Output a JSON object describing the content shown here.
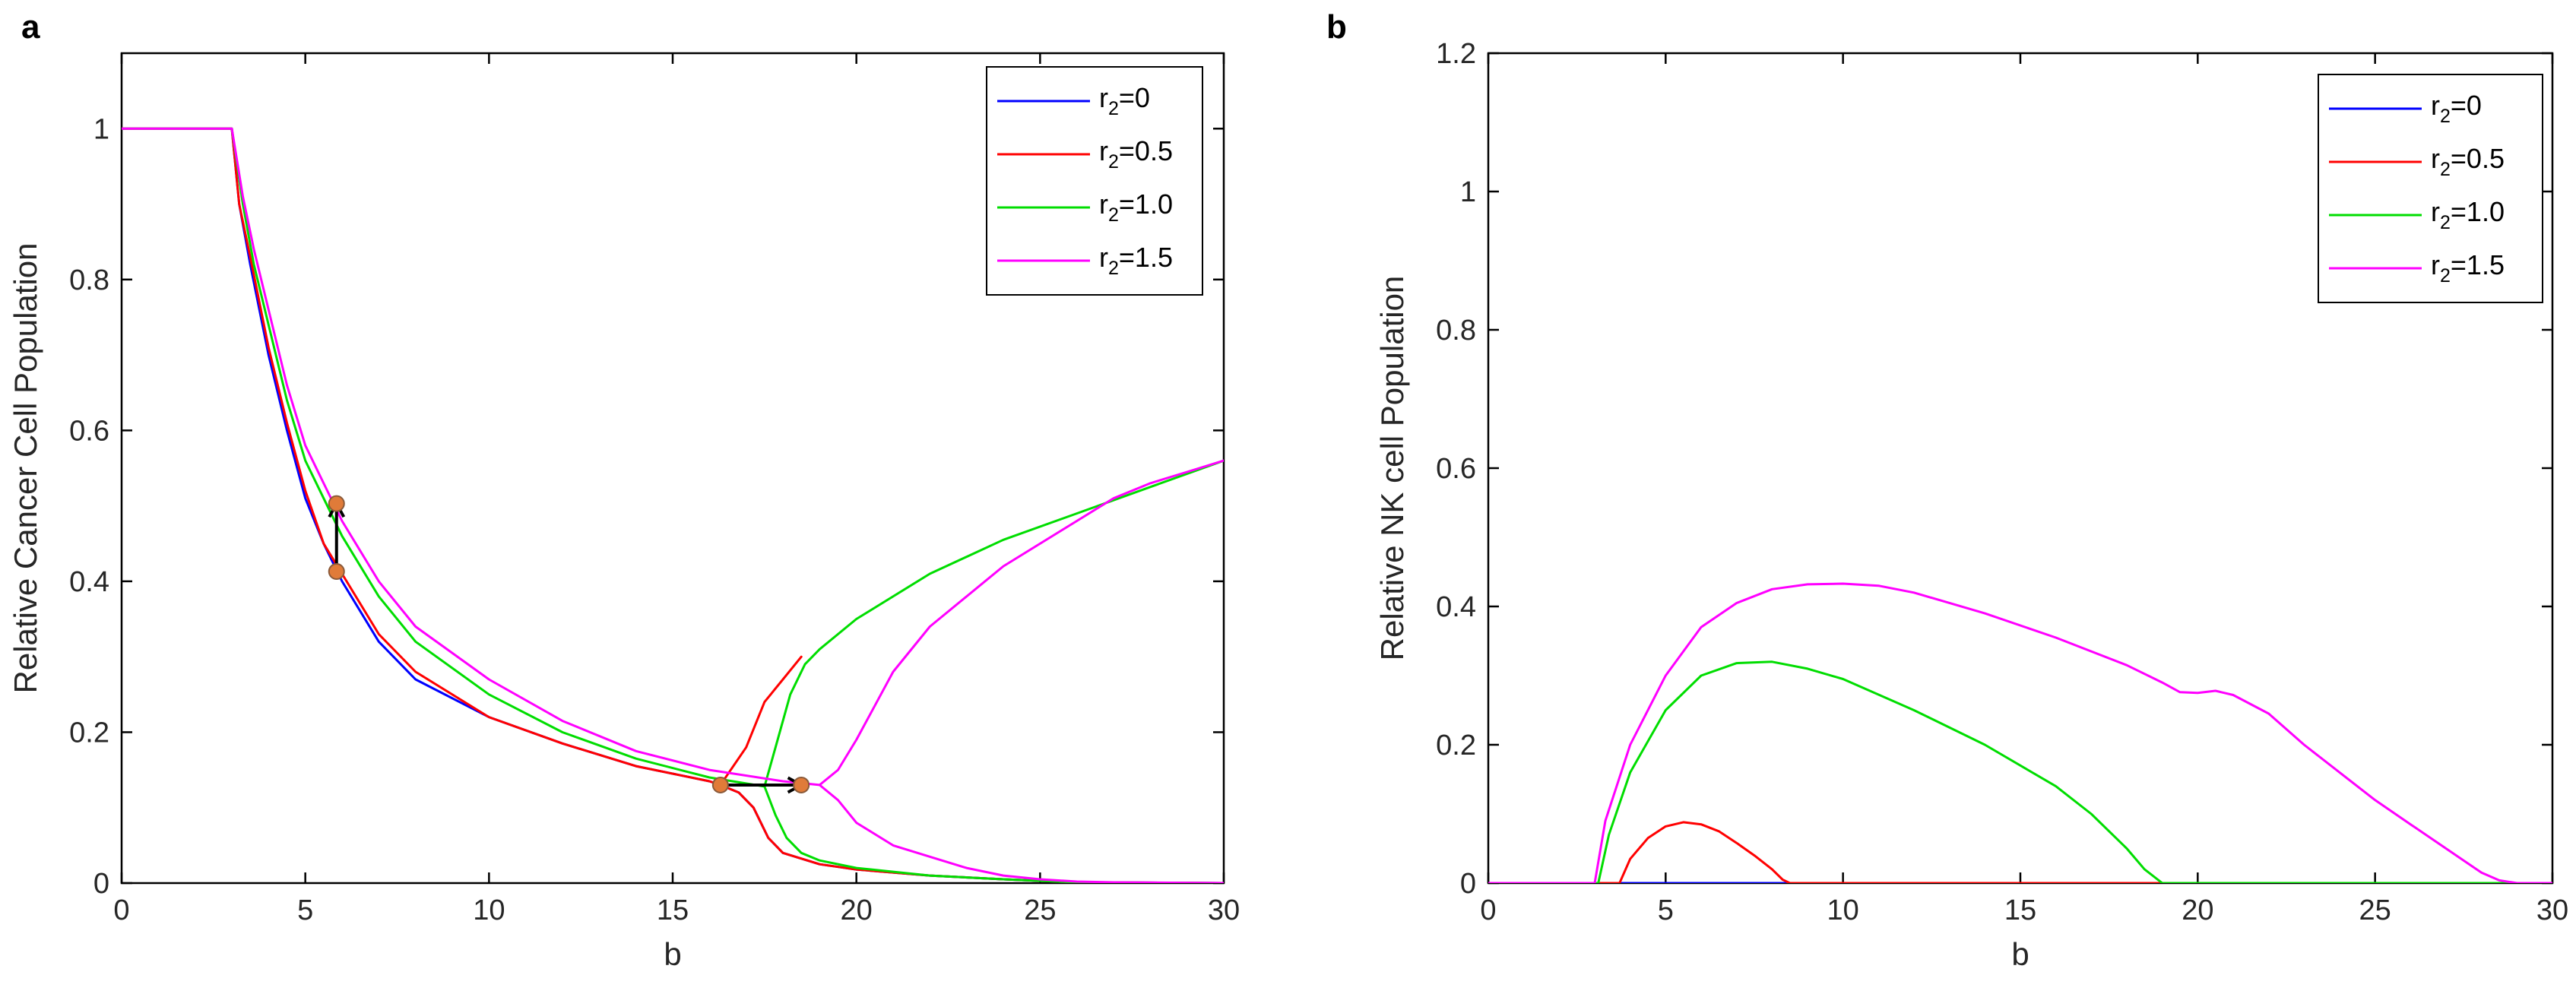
{
  "chart_data": [
    {
      "panel": "a",
      "type": "line",
      "title": "",
      "xlabel": "b",
      "ylabel": "Relative Cancer Cell Population",
      "xlim": [
        0,
        30
      ],
      "ylim": [
        0,
        1.1
      ],
      "xticks": [
        0,
        5,
        10,
        15,
        20,
        25,
        30
      ],
      "yticks": [
        0,
        0.2,
        0.4,
        0.6,
        0.8,
        1
      ],
      "xtick_labels": [
        "0",
        "5",
        "10",
        "15",
        "20",
        "25",
        "30"
      ],
      "ytick_labels": [
        "0",
        "0.2",
        "0.4",
        "0.6",
        "0.8",
        "1"
      ],
      "legend_position": "top-right",
      "series": [
        {
          "name": "r2=0",
          "name_base": "r",
          "name_sub": "2",
          "name_rest": "=0",
          "color": "#0000FF",
          "segments": [
            [
              [
                0,
                1
              ],
              [
                3,
                1
              ],
              [
                3.2,
                0.9
              ],
              [
                3.5,
                0.82
              ],
              [
                4,
                0.7
              ],
              [
                4.5,
                0.6
              ],
              [
                5,
                0.51
              ],
              [
                5.5,
                0.45
              ],
              [
                6,
                0.4
              ],
              [
                7,
                0.32
              ],
              [
                8,
                0.27
              ],
              [
                10,
                0.22
              ],
              [
                12,
                0.185
              ],
              [
                14,
                0.155
              ],
              [
                16,
                0.135
              ],
              [
                16.3,
                0.13
              ]
            ],
            [
              [
                16.3,
                0.13
              ],
              [
                16.8,
                0.12
              ],
              [
                17.2,
                0.1
              ],
              [
                17.6,
                0.06
              ],
              [
                18,
                0.04
              ],
              [
                19,
                0.025
              ],
              [
                20,
                0.018
              ],
              [
                22,
                0.01
              ],
              [
                24,
                0.005
              ],
              [
                25,
                0.003
              ],
              [
                26,
                0.001
              ],
              [
                30,
                0
              ]
            ]
          ]
        },
        {
          "name": "r2=0.5",
          "name_base": "r",
          "name_sub": "2",
          "name_rest": "=0.5",
          "color": "#FF0000",
          "segments": [
            [
              [
                0,
                1
              ],
              [
                3,
                1
              ],
              [
                3.2,
                0.9
              ],
              [
                3.5,
                0.83
              ],
              [
                4,
                0.71
              ],
              [
                4.5,
                0.61
              ],
              [
                5,
                0.52
              ],
              [
                5.5,
                0.45
              ],
              [
                6,
                0.41
              ],
              [
                7,
                0.33
              ],
              [
                8,
                0.28
              ],
              [
                10,
                0.22
              ],
              [
                12,
                0.185
              ],
              [
                14,
                0.155
              ],
              [
                16,
                0.135
              ],
              [
                16.3,
                0.13
              ]
            ],
            [
              [
                16.3,
                0.13
              ],
              [
                17,
                0.18
              ],
              [
                17.5,
                0.24
              ],
              [
                18,
                0.27
              ],
              [
                18.5,
                0.3
              ]
            ],
            [
              [
                16.3,
                0.13
              ],
              [
                16.8,
                0.12
              ],
              [
                17.2,
                0.1
              ],
              [
                17.6,
                0.06
              ],
              [
                18,
                0.04
              ],
              [
                19,
                0.025
              ],
              [
                20,
                0.018
              ],
              [
                22,
                0.01
              ],
              [
                24,
                0.005
              ],
              [
                25,
                0.003
              ],
              [
                26,
                0.001
              ],
              [
                30,
                0
              ]
            ]
          ]
        },
        {
          "name": "r2=1.0",
          "name_base": "r",
          "name_sub": "2",
          "name_rest": "=1.0",
          "color": "#00DD00",
          "segments": [
            [
              [
                0,
                1
              ],
              [
                3,
                1
              ],
              [
                3.3,
                0.9
              ],
              [
                3.6,
                0.82
              ],
              [
                4,
                0.74
              ],
              [
                4.5,
                0.64
              ],
              [
                5,
                0.56
              ],
              [
                5.5,
                0.51
              ],
              [
                6,
                0.46
              ],
              [
                7,
                0.38
              ],
              [
                8,
                0.32
              ],
              [
                10,
                0.25
              ],
              [
                12,
                0.2
              ],
              [
                14,
                0.165
              ],
              [
                16,
                0.14
              ],
              [
                17.5,
                0.128
              ]
            ],
            [
              [
                17.5,
                0.128
              ],
              [
                17.8,
                0.18
              ],
              [
                18.2,
                0.25
              ],
              [
                18.6,
                0.29
              ],
              [
                19,
                0.31
              ],
              [
                20,
                0.35
              ],
              [
                22,
                0.41
              ],
              [
                24,
                0.455
              ],
              [
                26,
                0.49
              ],
              [
                28,
                0.525
              ],
              [
                30,
                0.56
              ]
            ],
            [
              [
                17.5,
                0.128
              ],
              [
                17.8,
                0.09
              ],
              [
                18.1,
                0.06
              ],
              [
                18.5,
                0.04
              ],
              [
                19,
                0.03
              ],
              [
                20,
                0.02
              ],
              [
                22,
                0.01
              ],
              [
                24,
                0.005
              ],
              [
                26,
                0.001
              ],
              [
                30,
                0
              ]
            ]
          ]
        },
        {
          "name": "r2=1.5",
          "name_base": "r",
          "name_sub": "2",
          "name_rest": "=1.5",
          "color": "#FF00FF",
          "segments": [
            [
              [
                0,
                1
              ],
              [
                3,
                1
              ],
              [
                3.3,
                0.91
              ],
              [
                3.6,
                0.84
              ],
              [
                4,
                0.76
              ],
              [
                4.5,
                0.66
              ],
              [
                5,
                0.58
              ],
              [
                5.5,
                0.53
              ],
              [
                6,
                0.48
              ],
              [
                7,
                0.4
              ],
              [
                8,
                0.34
              ],
              [
                10,
                0.27
              ],
              [
                12,
                0.215
              ],
              [
                14,
                0.175
              ],
              [
                16,
                0.15
              ],
              [
                18,
                0.135
              ],
              [
                19,
                0.13
              ]
            ],
            [
              [
                19,
                0.13
              ],
              [
                19.5,
                0.15
              ],
              [
                20,
                0.19
              ],
              [
                21,
                0.28
              ],
              [
                22,
                0.34
              ],
              [
                24,
                0.42
              ],
              [
                26,
                0.48
              ],
              [
                27,
                0.51
              ],
              [
                28,
                0.53
              ],
              [
                29,
                0.545
              ],
              [
                30,
                0.56
              ]
            ],
            [
              [
                19,
                0.13
              ],
              [
                19.5,
                0.11
              ],
              [
                20,
                0.08
              ],
              [
                21,
                0.05
              ],
              [
                22,
                0.035
              ],
              [
                23,
                0.02
              ],
              [
                24,
                0.01
              ],
              [
                25,
                0.005
              ],
              [
                26,
                0.002
              ],
              [
                27,
                0.001
              ],
              [
                30,
                0
              ]
            ]
          ]
        }
      ],
      "annotations": {
        "markers": [
          [
            5.85,
            0.413
          ],
          [
            5.85,
            0.503
          ],
          [
            16.3,
            0.13
          ],
          [
            18.5,
            0.13
          ]
        ],
        "arrows": [
          {
            "from": [
              5.85,
              0.413
            ],
            "to": [
              5.85,
              0.503
            ]
          },
          {
            "from": [
              16.3,
              0.13
            ],
            "to": [
              18.5,
              0.13
            ]
          }
        ]
      }
    },
    {
      "panel": "b",
      "type": "line",
      "title": "",
      "xlabel": "b",
      "ylabel": "Relative NK cell Population",
      "xlim": [
        0,
        30
      ],
      "ylim": [
        0,
        1.2
      ],
      "xticks": [
        0,
        5,
        10,
        15,
        20,
        25,
        30
      ],
      "yticks": [
        0,
        0.2,
        0.4,
        0.6,
        0.8,
        1,
        1.2
      ],
      "xtick_labels": [
        "0",
        "5",
        "10",
        "15",
        "20",
        "25",
        "30"
      ],
      "ytick_labels": [
        "0",
        "0.2",
        "0.4",
        "0.6",
        "0.8",
        "1",
        "1.2"
      ],
      "legend_position": "top-right",
      "series": [
        {
          "name": "r2=0",
          "name_base": "r",
          "name_sub": "2",
          "name_rest": "=0",
          "color": "#0000FF",
          "segments": [
            [
              [
                0,
                0
              ],
              [
                30,
                0
              ]
            ]
          ]
        },
        {
          "name": "r2=0.5",
          "name_base": "r",
          "name_sub": "2",
          "name_rest": "=0.5",
          "color": "#FF0000",
          "segments": [
            [
              [
                0,
                0
              ],
              [
                3.7,
                0
              ],
              [
                4,
                0.035
              ],
              [
                4.5,
                0.065
              ],
              [
                5,
                0.082
              ],
              [
                5.5,
                0.088
              ],
              [
                6,
                0.085
              ],
              [
                6.5,
                0.075
              ],
              [
                7,
                0.058
              ],
              [
                7.5,
                0.04
              ],
              [
                8,
                0.02
              ],
              [
                8.3,
                0.005
              ],
              [
                8.5,
                0
              ],
              [
                30,
                0
              ]
            ]
          ]
        },
        {
          "name": "r2=1.0",
          "name_base": "r",
          "name_sub": "2",
          "name_rest": "=1.0",
          "color": "#00DD00",
          "segments": [
            [
              [
                0,
                0
              ],
              [
                3.1,
                0
              ],
              [
                3.4,
                0.07
              ],
              [
                4,
                0.16
              ],
              [
                5,
                0.25
              ],
              [
                6,
                0.3
              ],
              [
                7,
                0.318
              ],
              [
                8,
                0.32
              ],
              [
                9,
                0.31
              ],
              [
                10,
                0.295
              ],
              [
                12,
                0.25
              ],
              [
                14,
                0.2
              ],
              [
                16,
                0.14
              ],
              [
                17,
                0.1
              ],
              [
                18,
                0.05
              ],
              [
                18.5,
                0.02
              ],
              [
                19,
                0
              ],
              [
                30,
                0
              ]
            ]
          ]
        },
        {
          "name": "r2=1.5",
          "name_base": "r",
          "name_sub": "2",
          "name_rest": "=1.5",
          "color": "#FF00FF",
          "segments": [
            [
              [
                0,
                0
              ],
              [
                3,
                0
              ],
              [
                3.3,
                0.09
              ],
              [
                4,
                0.2
              ],
              [
                5,
                0.3
              ],
              [
                6,
                0.37
              ],
              [
                7,
                0.405
              ],
              [
                8,
                0.425
              ],
              [
                9,
                0.432
              ],
              [
                10,
                0.433
              ],
              [
                11,
                0.43
              ],
              [
                12,
                0.42
              ],
              [
                14,
                0.39
              ],
              [
                16,
                0.355
              ],
              [
                18,
                0.315
              ],
              [
                19,
                0.29
              ],
              [
                19.5,
                0.276
              ],
              [
                20,
                0.275
              ],
              [
                20.5,
                0.278
              ],
              [
                21,
                0.272
              ],
              [
                22,
                0.245
              ],
              [
                23,
                0.2
              ],
              [
                24,
                0.16
              ],
              [
                25,
                0.12
              ],
              [
                26,
                0.085
              ],
              [
                27,
                0.05
              ],
              [
                28,
                0.015
              ],
              [
                28.5,
                0.004
              ],
              [
                29,
                0
              ],
              [
                30,
                0
              ]
            ]
          ]
        }
      ]
    }
  ]
}
